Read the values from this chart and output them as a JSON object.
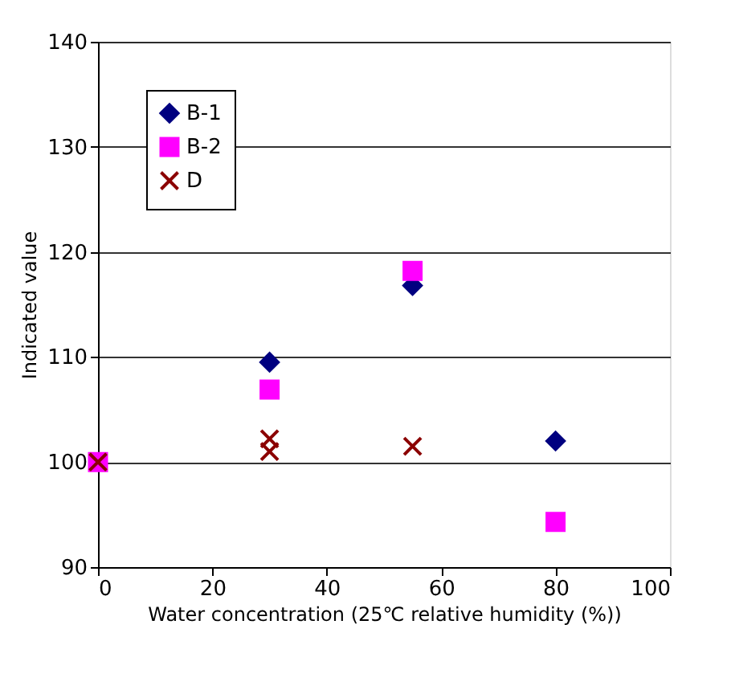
{
  "chart_data": {
    "type": "scatter",
    "xlabel": "Water concentration (25℃ relative humidity (%))",
    "ylabel": "Indicated value",
    "series": [
      {
        "name": "B-1",
        "color": "#000080",
        "marker": "diamond",
        "x": [
          30,
          55,
          80
        ],
        "values": [
          109.5,
          116.8,
          102
        ]
      },
      {
        "name": "B-2",
        "color": "#ff00ff",
        "marker": "square",
        "x": [
          0,
          30,
          55,
          80
        ],
        "values": [
          100,
          106.9,
          118.2,
          94.3
        ]
      },
      {
        "name": "D",
        "color": "#8b0000",
        "marker": "cross",
        "x": [
          0,
          30,
          30,
          55
        ],
        "values": [
          100,
          102.2,
          101,
          101.5
        ]
      }
    ],
    "xlim": [
      0,
      100
    ],
    "xticks": [
      0,
      20,
      40,
      60,
      80,
      100
    ],
    "ylim": [
      90,
      140
    ],
    "yticks": [
      90,
      100,
      110,
      120,
      130,
      140
    ],
    "grid": "y",
    "legend": "top left"
  }
}
